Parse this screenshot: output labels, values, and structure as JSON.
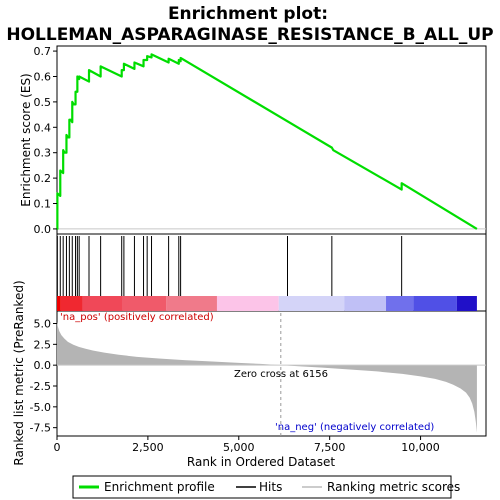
{
  "title_line1": "Enrichment plot:",
  "title_line2": "HOLLEMAN_ASPARAGINASE_RESISTANCE_B_ALL_UP",
  "top_panel": {
    "ylabel": "Enrichment score (ES)",
    "yticks": [
      "0.0",
      "0.1",
      "0.2",
      "0.3",
      "0.4",
      "0.5",
      "0.6",
      "0.7"
    ]
  },
  "bottom_panel": {
    "ylabel": "Ranked list metric (PreRanked)",
    "yticks": [
      "5.0",
      "2.5",
      "0.0",
      "-2.5",
      "-5.0",
      "-7.5"
    ],
    "pos_label": "'na_pos' (positively correlated)",
    "neg_label": "'na_neg' (negatively correlated)",
    "zero_cross_label": "Zero cross at 6156"
  },
  "xlabel": "Rank in Ordered Dataset",
  "xticks": [
    "0",
    "2,500",
    "5,000",
    "7,500",
    "10,000"
  ],
  "legend": {
    "items": [
      {
        "label": "Enrichment profile",
        "color": "#00dd00"
      },
      {
        "label": "Hits",
        "color": "#000000"
      },
      {
        "label": "Ranking metric scores",
        "color": "#bbbbbb"
      }
    ]
  },
  "colors": {
    "profile": "#00dd00",
    "metric": "#b4b4b4",
    "zero_line": "#c8c8c8"
  },
  "chart_data": {
    "type": "line",
    "x_range": [
      0,
      11800
    ],
    "es_range": [
      -0.02,
      0.72
    ],
    "metric_range": [
      -8.5,
      6.5
    ],
    "zero_cross": 6156,
    "n_genes": 11550,
    "hits": [
      10,
      90,
      170,
      260,
      340,
      420,
      510,
      560,
      610,
      880,
      1200,
      1780,
      1840,
      2130,
      2380,
      2480,
      2600,
      3070,
      3350,
      3400,
      6340,
      7560,
      9480
    ],
    "es_profile": {
      "x": [
        0,
        10,
        10,
        90,
        90,
        170,
        170,
        210,
        260,
        260,
        300,
        340,
        340,
        380,
        420,
        420,
        460,
        510,
        510,
        560,
        560,
        610,
        610,
        880,
        880,
        1200,
        1200,
        1780,
        1780,
        1840,
        1840,
        2130,
        2130,
        2380,
        2380,
        2480,
        2480,
        2600,
        2600,
        3070,
        3070,
        3350,
        3350,
        3400,
        3400,
        7560,
        7600,
        9480,
        9480,
        11550
      ],
      "y": [
        0.0,
        0.0,
        0.14,
        0.13,
        0.23,
        0.22,
        0.31,
        0.3,
        0.3,
        0.37,
        0.36,
        0.36,
        0.43,
        0.43,
        0.42,
        0.5,
        0.49,
        0.49,
        0.54,
        0.54,
        0.6,
        0.59,
        0.6,
        0.58,
        0.625,
        0.6,
        0.64,
        0.6,
        0.625,
        0.625,
        0.65,
        0.63,
        0.655,
        0.64,
        0.665,
        0.665,
        0.68,
        0.675,
        0.687,
        0.655,
        0.67,
        0.65,
        0.665,
        0.66,
        0.673,
        0.32,
        0.31,
        0.155,
        0.18,
        0.0
      ]
    },
    "metric_curve": {
      "x": [
        0,
        20,
        60,
        120,
        200,
        300,
        450,
        600,
        800,
        1000,
        1300,
        1700,
        2200,
        2800,
        3500,
        4200,
        5000,
        5600,
        6156,
        6700,
        7300,
        8000,
        8800,
        9500,
        10000,
        10400,
        10700,
        10900,
        11100,
        11250,
        11350,
        11420,
        11480,
        11520,
        11550
      ],
      "y": [
        5.2,
        4.7,
        4.1,
        3.6,
        3.2,
        2.8,
        2.45,
        2.2,
        1.95,
        1.75,
        1.5,
        1.25,
        1.0,
        0.8,
        0.6,
        0.45,
        0.28,
        0.15,
        0.0,
        -0.15,
        -0.3,
        -0.5,
        -0.75,
        -1.05,
        -1.35,
        -1.65,
        -2.0,
        -2.35,
        -2.8,
        -3.3,
        -3.9,
        -4.6,
        -5.6,
        -6.8,
        -8.1
      ]
    },
    "heat_segments": [
      {
        "x0": 0,
        "x1": 100,
        "color": "#ee0000"
      },
      {
        "x0": 100,
        "x1": 700,
        "color": "#f02830"
      },
      {
        "x0": 700,
        "x1": 1800,
        "color": "#f04858"
      },
      {
        "x0": 1800,
        "x1": 3000,
        "color": "#f05a6a"
      },
      {
        "x0": 3000,
        "x1": 4400,
        "color": "#f07a8a"
      },
      {
        "x0": 4400,
        "x1": 6100,
        "color": "#fcc4e8"
      },
      {
        "x0": 6100,
        "x1": 7900,
        "color": "#d4d4f8"
      },
      {
        "x0": 7900,
        "x1": 9050,
        "color": "#c0c0f6"
      },
      {
        "x0": 9050,
        "x1": 9800,
        "color": "#7070ec"
      },
      {
        "x0": 9800,
        "x1": 11000,
        "color": "#5050e6"
      },
      {
        "x0": 11000,
        "x1": 11550,
        "color": "#2010c8"
      }
    ]
  }
}
